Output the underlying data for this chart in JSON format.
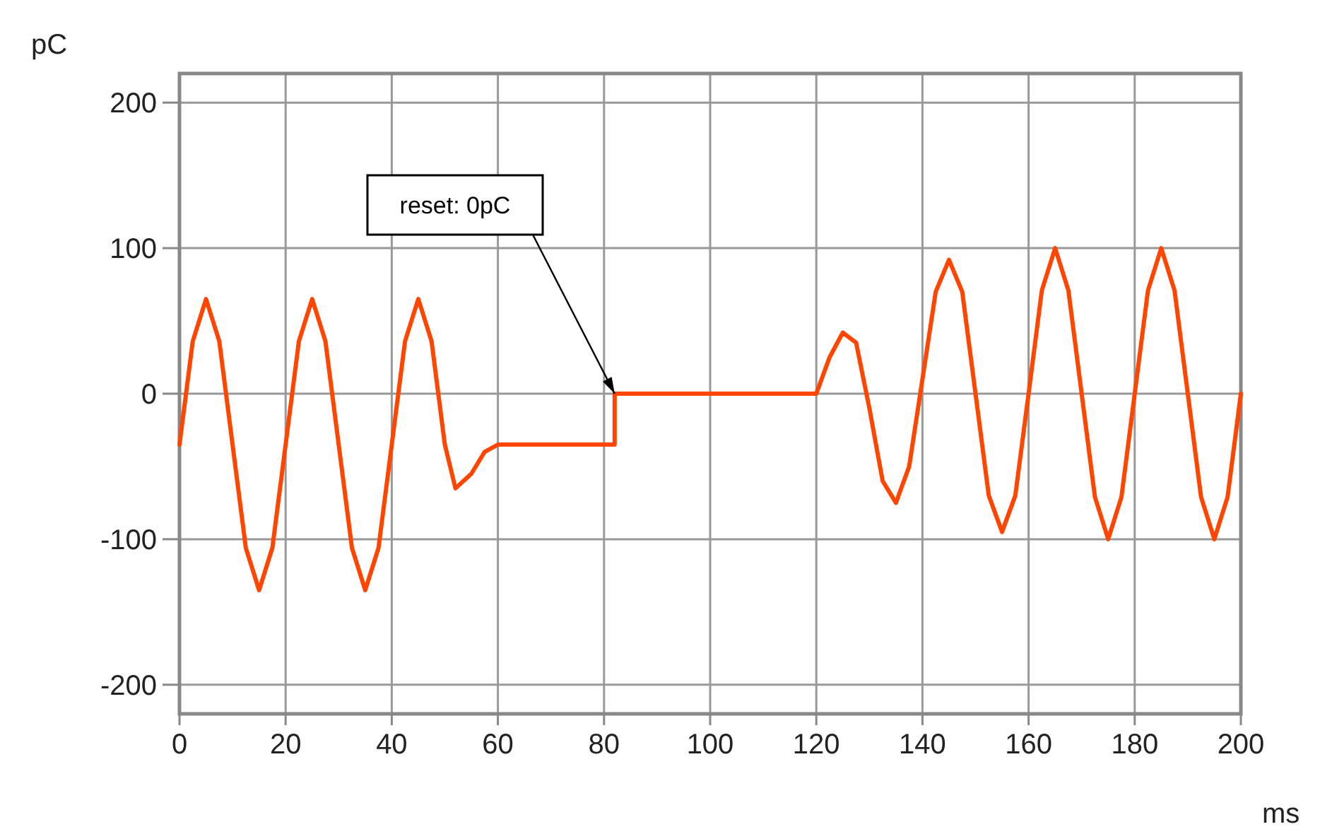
{
  "chart_data": {
    "type": "line",
    "xlabel": "ms",
    "ylabel": "pC",
    "xlim": [
      0,
      200
    ],
    "ylim": [
      -220,
      220
    ],
    "xticks": [
      0,
      20,
      40,
      60,
      80,
      100,
      120,
      140,
      160,
      180,
      200
    ],
    "yticks": [
      -200,
      -100,
      0,
      100,
      200
    ],
    "grid": true,
    "line_style": "solid",
    "marker": "none",
    "annotations": [
      {
        "text": "reset: 0pC",
        "x": 82,
        "y": 0
      }
    ],
    "series": [
      {
        "color": "#ff4500",
        "x": [
          0,
          2.5,
          5,
          7.5,
          10,
          12.5,
          15,
          17.5,
          20,
          22.5,
          25,
          27.5,
          30,
          32.5,
          35,
          37.5,
          40,
          42.5,
          45,
          47.5,
          50,
          52,
          55,
          57.5,
          60,
          82,
          82,
          120,
          122.5,
          125,
          127.5,
          130,
          132.5,
          135,
          137.5,
          140,
          142.5,
          145,
          147.5,
          150,
          152.5,
          155,
          157.5,
          160,
          162.5,
          165,
          167.5,
          170,
          172.5,
          175,
          177.5,
          180,
          182.5,
          185,
          187.5,
          190,
          192.5,
          195,
          197.5,
          200
        ],
        "values": [
          -35,
          36,
          65,
          36,
          -35,
          -106,
          -135,
          -106,
          -35,
          36,
          65,
          36,
          -35,
          -106,
          -135,
          -106,
          -35,
          36,
          65,
          36,
          -35,
          -65,
          -55,
          -40,
          -35,
          -35,
          0,
          0,
          25,
          42,
          35,
          -10,
          -60,
          -75,
          -50,
          10,
          70,
          92,
          70,
          0,
          -70,
          -95,
          -70,
          0,
          71,
          100,
          71,
          0,
          -71,
          -100,
          -71,
          0,
          71,
          100,
          71,
          0,
          -71,
          -100,
          -71,
          0
        ]
      }
    ]
  }
}
